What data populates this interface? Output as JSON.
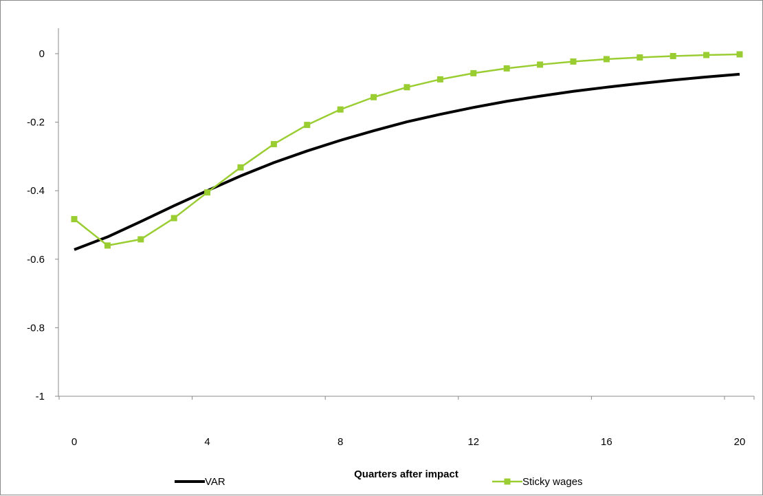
{
  "chart_data": {
    "type": "line",
    "title": "",
    "xlabel": "Quarters after impact",
    "ylabel": "",
    "xlim": [
      0,
      20
    ],
    "ylim": [
      -1,
      0
    ],
    "x_ticks": [
      0,
      4,
      8,
      12,
      16,
      20
    ],
    "y_ticks": [
      0,
      -0.2,
      -0.4,
      -0.6,
      -0.8,
      -1
    ],
    "x_tick_labels": [
      "0",
      "4",
      "8",
      "12",
      "16",
      "20"
    ],
    "y_tick_labels": [
      "0",
      "-0.2",
      "-0.4",
      "-0.6",
      "-0.8",
      "-1"
    ],
    "grid": false,
    "legend_position": "bottom",
    "x": [
      0,
      1,
      2,
      3,
      4,
      5,
      6,
      7,
      8,
      9,
      10,
      11,
      12,
      13,
      14,
      15,
      16,
      17,
      18,
      19,
      20
    ],
    "series": [
      {
        "name": "VAR",
        "color": "#000000",
        "marker": "none",
        "values": [
          -0.572,
          -0.535,
          -0.49,
          -0.444,
          -0.4,
          -0.357,
          -0.318,
          -0.284,
          -0.253,
          -0.225,
          -0.199,
          -0.177,
          -0.157,
          -0.139,
          -0.124,
          -0.11,
          -0.098,
          -0.087,
          -0.077,
          -0.068,
          -0.06
        ]
      },
      {
        "name": "Sticky wages",
        "color": "#9acd32",
        "marker": "square",
        "values": [
          -0.483,
          -0.56,
          -0.542,
          -0.48,
          -0.405,
          -0.332,
          -0.264,
          -0.208,
          -0.163,
          -0.127,
          -0.098,
          -0.075,
          -0.057,
          -0.043,
          -0.032,
          -0.023,
          -0.016,
          -0.011,
          -0.007,
          -0.004,
          -0.002
        ]
      }
    ]
  }
}
